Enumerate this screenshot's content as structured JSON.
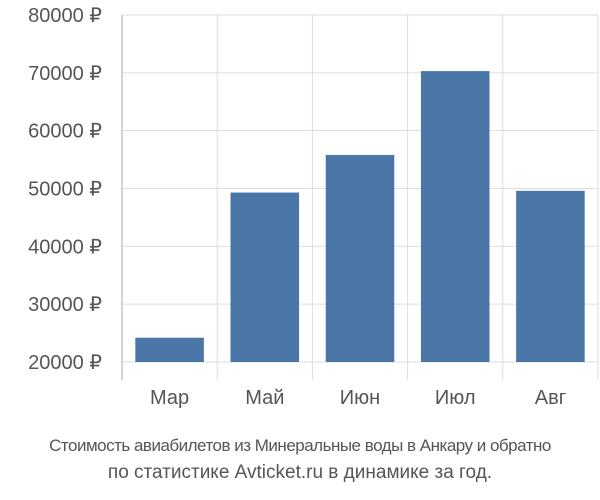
{
  "chart_data": {
    "type": "bar",
    "categories": [
      "Мар",
      "Май",
      "Июн",
      "Июл",
      "Авг"
    ],
    "values": [
      24200,
      49300,
      55800,
      70300,
      49600
    ],
    "yticks": [
      "80000 ₽",
      "70000 ₽",
      "60000 ₽",
      "50000 ₽",
      "40000 ₽",
      "30000 ₽",
      "20000 ₽"
    ],
    "ytick_values": [
      80000,
      70000,
      60000,
      50000,
      40000,
      30000,
      20000
    ],
    "ylim": [
      20000,
      80000
    ],
    "grid": true,
    "bar_color": "#4a76a8",
    "grid_color": "#dddddd",
    "axis_color": "#aaaaaa",
    "text_color": "#555555"
  },
  "caption": {
    "line1": "Стоимость авиабилетов из Минеральные воды в Анкару и обратно",
    "line2": "по статистике Avticket.ru в динамике за год."
  }
}
